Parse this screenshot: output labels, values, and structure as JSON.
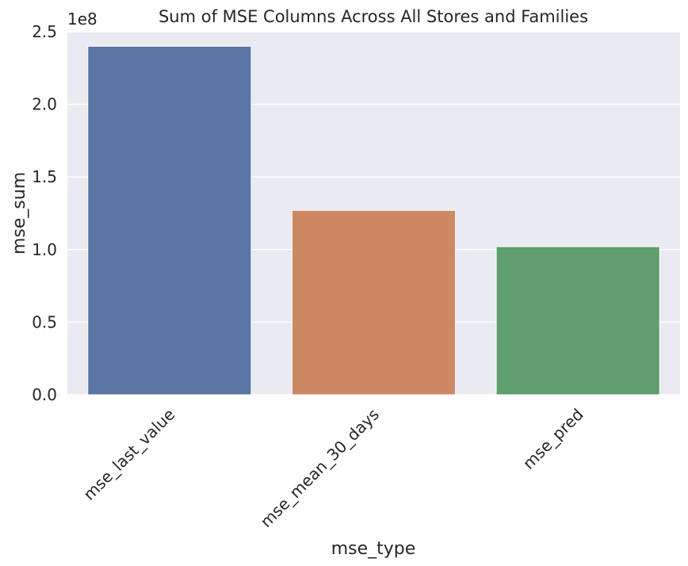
{
  "chart_data": {
    "type": "bar",
    "title": "Sum of MSE Columns Across All Stores and Families",
    "xlabel": "mse_type",
    "ylabel": "mse_sum",
    "y_offset_label": "1e8",
    "categories": [
      "mse_last_value",
      "mse_mean_30_days",
      "mse_pred"
    ],
    "values": [
      240000000,
      127000000,
      102000000
    ],
    "colors": [
      "#5875a4",
      "#cc8963",
      "#5f9e6e"
    ],
    "ylim": [
      0,
      250000000
    ],
    "yticks": [
      0,
      50000000,
      100000000,
      150000000,
      200000000,
      250000000
    ],
    "ytick_labels": [
      "0.0",
      "0.5",
      "1.0",
      "1.5",
      "2.0",
      "2.5"
    ],
    "grid": true,
    "background": "#eaeaf2"
  }
}
